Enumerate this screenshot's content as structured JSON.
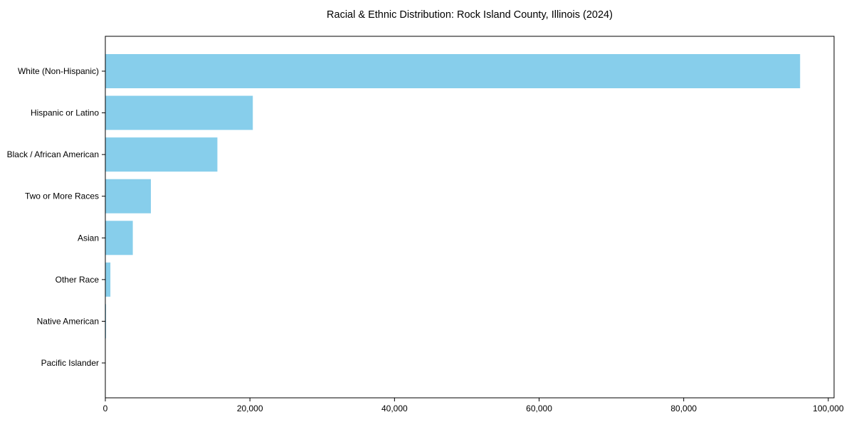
{
  "chart_data": {
    "type": "bar",
    "orientation": "horizontal",
    "title": "Racial & Ethnic Distribution: Rock Island County, Illinois (2024)",
    "categories": [
      "White (Non-Hispanic)",
      "Hispanic or Latino",
      "Black / African American",
      "Two or More Races",
      "Asian",
      "Other Race",
      "Native American",
      "Pacific Islander"
    ],
    "values": [
      96100,
      20400,
      15500,
      6300,
      3800,
      700,
      100,
      30
    ],
    "xlabel": "",
    "ylabel": "",
    "xlim": [
      0,
      100800
    ],
    "x_ticks": [
      0,
      20000,
      40000,
      60000,
      80000,
      100000
    ],
    "x_tick_labels": [
      "0",
      "20,000",
      "40,000",
      "60,000",
      "80,000",
      "100,000"
    ],
    "bar_color": "#87CEEB",
    "axis_color": "#000000",
    "text_color": "#000000",
    "grid": false,
    "legend": false,
    "background": "#ffffff"
  }
}
